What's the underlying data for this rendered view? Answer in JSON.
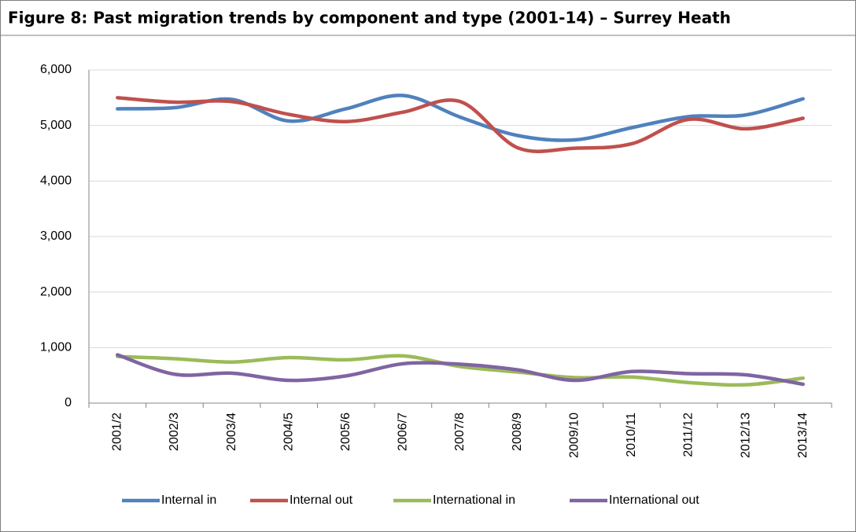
{
  "chart_data": {
    "type": "line",
    "title": "Figure 8: Past migration trends by component and type (2001-14) – Surrey Heath",
    "categories": [
      "2001/2",
      "2002/3",
      "2003/4",
      "2004/5",
      "2005/6",
      "2006/7",
      "2007/8",
      "2008/9",
      "2009/10",
      "2010/11",
      "2011/12",
      "2012/13",
      "2013/14"
    ],
    "series": [
      {
        "name": "Internal in",
        "color": "#4f81bd",
        "values": [
          5300,
          5320,
          5470,
          5080,
          5300,
          5540,
          5150,
          4820,
          4740,
          4960,
          5160,
          5190,
          5480
        ]
      },
      {
        "name": "Internal out",
        "color": "#c0504d",
        "values": [
          5500,
          5420,
          5430,
          5200,
          5070,
          5240,
          5430,
          4600,
          4590,
          4670,
          5110,
          4940,
          5130
        ]
      },
      {
        "name": "International in",
        "color": "#9bbb59",
        "values": [
          840,
          800,
          740,
          820,
          780,
          850,
          660,
          560,
          460,
          470,
          370,
          330,
          450
        ]
      },
      {
        "name": "International out",
        "color": "#8064a2",
        "values": [
          870,
          520,
          540,
          410,
          490,
          710,
          700,
          600,
          410,
          570,
          530,
          510,
          340
        ]
      }
    ],
    "ylim": [
      0,
      6000
    ],
    "yticks": [
      0,
      {
        "value": 1000,
        "label": "1,000"
      },
      {
        "value": 2000,
        "label": "2,000"
      },
      {
        "value": 3000,
        "label": "3,000"
      },
      {
        "value": 4000,
        "label": "4,000"
      },
      {
        "value": 5000,
        "label": "5,000"
      },
      {
        "value": 6000,
        "label": "6,000"
      }
    ],
    "grid": true,
    "legend": "bottom"
  }
}
